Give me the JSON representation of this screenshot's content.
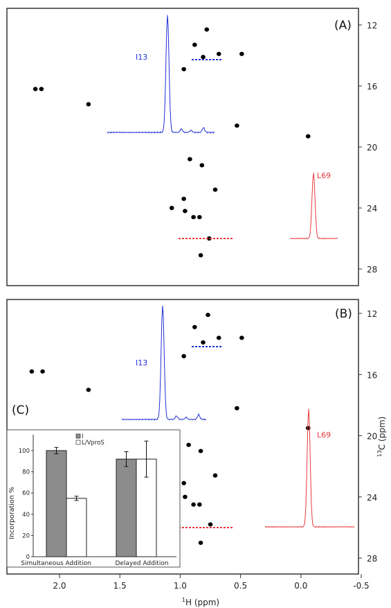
{
  "colors": {
    "dots": "#000000",
    "blue": "#1f2fd6",
    "red": "#e8393f",
    "bar_gray": "#8c8c8c",
    "bar_white": "#ffffff",
    "frame": "#333333"
  },
  "axes": {
    "x_label_sup": "1",
    "x_label_rest": "H (ppm)",
    "y_label_sup": "13",
    "y_label_rest": "C (ppm)",
    "x_ticks": [
      "2.0",
      "1.5",
      "1.0",
      "0.5",
      "0.0",
      "-0.5"
    ],
    "y_ticks": [
      "12",
      "16",
      "20",
      "24",
      "28"
    ]
  },
  "chart_data": [
    {
      "type": "scatter",
      "panel_label": "(A)",
      "xlabel": "1H (ppm)",
      "ylabel": "13C (ppm)",
      "xlim": [
        2.3,
        -0.5
      ],
      "ylim": [
        11.5,
        28.5
      ],
      "x_ticks": [
        2.0,
        1.5,
        1.0,
        0.5,
        0.0,
        -0.5
      ],
      "y_ticks": [
        12,
        16,
        20,
        24,
        28
      ],
      "points": [
        {
          "x": 2.2,
          "y": 16.2
        },
        {
          "x": 2.15,
          "y": 16.2
        },
        {
          "x": 1.76,
          "y": 17.2
        },
        {
          "x": 0.88,
          "y": 13.3
        },
        {
          "x": 0.78,
          "y": 12.3
        },
        {
          "x": 0.68,
          "y": 13.9
        },
        {
          "x": 0.49,
          "y": 13.9
        },
        {
          "x": 0.81,
          "y": 14.1
        },
        {
          "x": 0.97,
          "y": 14.9
        },
        {
          "x": 0.53,
          "y": 18.6
        },
        {
          "x": -0.06,
          "y": 19.3
        },
        {
          "x": 0.92,
          "y": 20.8
        },
        {
          "x": 0.82,
          "y": 21.2
        },
        {
          "x": 0.71,
          "y": 22.8
        },
        {
          "x": 0.97,
          "y": 23.4
        },
        {
          "x": 1.07,
          "y": 24.0
        },
        {
          "x": 0.96,
          "y": 24.2
        },
        {
          "x": 0.89,
          "y": 24.6
        },
        {
          "x": 0.84,
          "y": 24.6
        },
        {
          "x": 0.76,
          "y": 26.0
        },
        {
          "x": 0.83,
          "y": 27.1
        }
      ],
      "spectra": [
        {
          "name": "I13",
          "color": "blue"
        },
        {
          "name": "L69",
          "color": "red"
        }
      ]
    },
    {
      "type": "scatter",
      "panel_label": "(B)",
      "xlabel": "1H (ppm)",
      "ylabel": "13C (ppm)",
      "xlim": [
        2.3,
        -0.5
      ],
      "ylim": [
        11.5,
        28.5
      ],
      "x_ticks": [
        2.0,
        1.5,
        1.0,
        0.5,
        0.0,
        -0.5
      ],
      "y_ticks": [
        12,
        16,
        20,
        24,
        28
      ],
      "points": [
        {
          "x": 2.23,
          "y": 15.8
        },
        {
          "x": 2.14,
          "y": 15.8
        },
        {
          "x": 1.76,
          "y": 17.0
        },
        {
          "x": 0.88,
          "y": 12.9
        },
        {
          "x": 0.77,
          "y": 12.1
        },
        {
          "x": 0.68,
          "y": 13.6
        },
        {
          "x": 0.49,
          "y": 13.6
        },
        {
          "x": 0.81,
          "y": 13.9
        },
        {
          "x": 0.97,
          "y": 14.8
        },
        {
          "x": 0.53,
          "y": 18.2
        },
        {
          "x": -0.06,
          "y": 19.5
        },
        {
          "x": 0.93,
          "y": 20.6
        },
        {
          "x": 0.83,
          "y": 21.0
        },
        {
          "x": 0.71,
          "y": 22.6
        },
        {
          "x": 0.97,
          "y": 23.1
        },
        {
          "x": 1.07,
          "y": 23.6
        },
        {
          "x": 0.96,
          "y": 24.0
        },
        {
          "x": 0.89,
          "y": 24.5
        },
        {
          "x": 0.84,
          "y": 24.5
        },
        {
          "x": 0.75,
          "y": 25.8
        },
        {
          "x": 0.83,
          "y": 27.0
        }
      ],
      "spectra": [
        {
          "name": "I13",
          "color": "blue"
        },
        {
          "name": "L69",
          "color": "red"
        }
      ]
    },
    {
      "type": "bar",
      "panel_label": "(C)",
      "ylabel": "Incorporation %",
      "categories": [
        "Simultaneous Addition",
        "Delayed Addition"
      ],
      "ylim": [
        0,
        115
      ],
      "y_ticks": [
        0,
        20,
        40,
        60,
        80,
        100
      ],
      "series": [
        {
          "name": "I",
          "color": "bar_gray",
          "values": [
            100,
            92
          ],
          "errors": [
            3,
            7
          ]
        },
        {
          "name": "L/VproS",
          "color": "bar_white",
          "values": [
            55,
            92
          ],
          "errors": [
            2,
            17
          ]
        }
      ]
    }
  ]
}
